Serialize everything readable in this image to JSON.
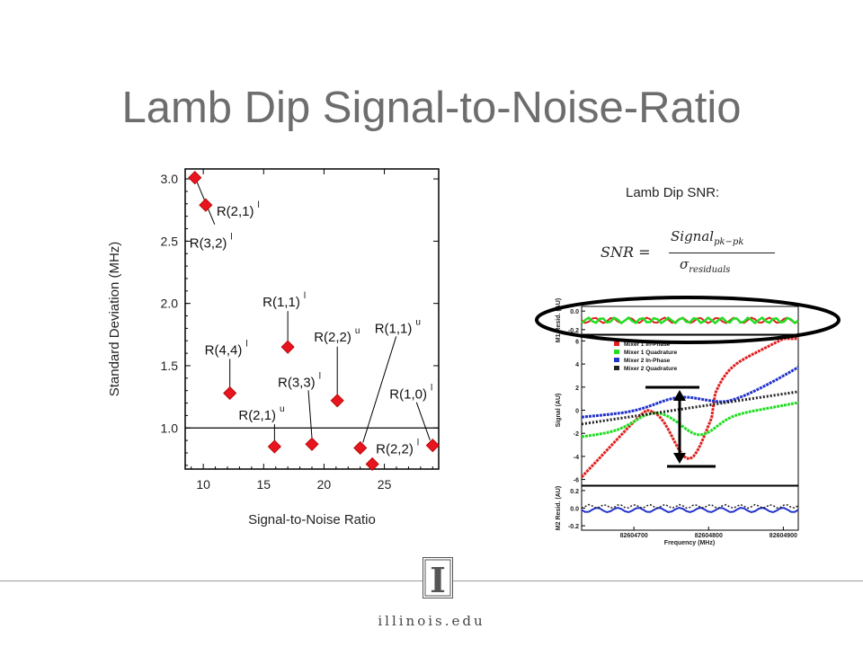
{
  "slide": {
    "title": "Lamb Dip Signal-to-Noise-Ratio",
    "snr_label": "Lamb Dip SNR:",
    "formula": {
      "lhs": "SNR =",
      "numerator": "Signal",
      "numerator_sub": "pk−pk",
      "denominator": "σ",
      "denominator_sub": "residuals"
    },
    "footer_domain": "illinois.edu",
    "logo_letter": "I"
  },
  "chart_data": [
    {
      "type": "scatter",
      "title": "",
      "xlabel": "Signal-to-Noise Ratio",
      "ylabel": "Standard Deviation (MHz)",
      "xlim": [
        8.5,
        29.5
      ],
      "ylim": [
        0.67,
        3.08
      ],
      "x_ticks": [
        "10",
        "15",
        "20",
        "25"
      ],
      "y_ticks": [
        "1.0",
        "1.5",
        "2.0",
        "2.5",
        "3.0"
      ],
      "reference_line": 1.0,
      "marker_color": "#e8141e",
      "points": [
        {
          "x": 9.3,
          "y": 3.01,
          "label": "R(3,2)",
          "sup": "l"
        },
        {
          "x": 10.2,
          "y": 2.79,
          "label": "R(2,1)",
          "sup": "l"
        },
        {
          "x": 12.2,
          "y": 1.28,
          "label": "R(4,4)",
          "sup": "l"
        },
        {
          "x": 15.9,
          "y": 0.85,
          "label": "R(2,1)",
          "sup": "u"
        },
        {
          "x": 17.0,
          "y": 1.65,
          "label": "R(1,1)",
          "sup": "l"
        },
        {
          "x": 19.0,
          "y": 0.87,
          "label": "R(3,3)",
          "sup": "l"
        },
        {
          "x": 21.1,
          "y": 1.22,
          "label": "R(2,2)",
          "sup": "u"
        },
        {
          "x": 23.0,
          "y": 0.84,
          "label": "R(1,1)",
          "sup": "u"
        },
        {
          "x": 24.0,
          "y": 0.71,
          "label": "R(2,2)",
          "sup": "l"
        },
        {
          "x": 29.0,
          "y": 0.86,
          "label": "R(1,0)",
          "sup": "l"
        }
      ]
    },
    {
      "type": "line",
      "xlabel": "Frequency (MHz)",
      "x_ticks": [
        "82604700",
        "82604800",
        "82604900"
      ],
      "xlim": [
        82604630,
        82604920
      ],
      "panels": [
        {
          "ylabel": "M1 Resid. (AU)",
          "ylim": [
            -0.25,
            0.05
          ],
          "y_ticks": [
            "0.0",
            "-0.2"
          ]
        },
        {
          "ylabel": "Signal (AU)",
          "ylim": [
            -6.5,
            6.5
          ],
          "y_ticks": [
            "6",
            "4",
            "2",
            "0",
            "-2",
            "-4",
            "-6"
          ]
        },
        {
          "ylabel": "M2 Resid. (AU)",
          "ylim": [
            -0.25,
            0.25
          ],
          "y_ticks": [
            "0.2",
            "0.0",
            "-0.2"
          ]
        }
      ],
      "series": [
        {
          "name": "Mixer 1 In-Phase",
          "color": "#e02020",
          "marker": "triangle-right"
        },
        {
          "name": "Mixer 1 Quadrature",
          "color": "#22dd22",
          "marker": "x"
        },
        {
          "name": "Mixer 2 In-Phase",
          "color": "#2233cc",
          "marker": "triangle-up"
        },
        {
          "name": "Mixer 2 Quadrature",
          "color": "#222222",
          "marker": "circle-open"
        }
      ]
    }
  ]
}
